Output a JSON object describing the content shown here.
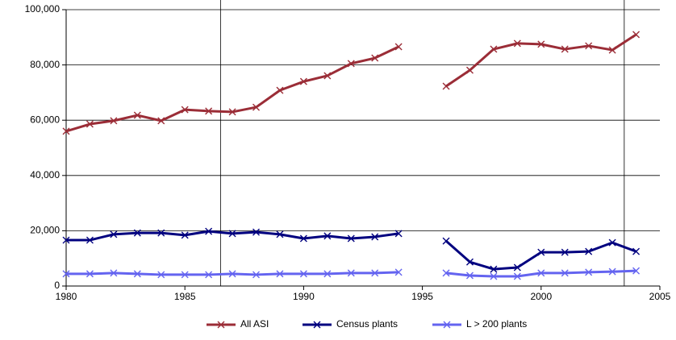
{
  "chart_data": {
    "type": "line",
    "x": [
      1980,
      1981,
      1982,
      1983,
      1984,
      1985,
      1986,
      1987,
      1988,
      1989,
      1990,
      1991,
      1992,
      1993,
      1994,
      1995,
      1996,
      1997,
      1998,
      1999,
      2000,
      2001,
      2002,
      2003,
      2004
    ],
    "series": [
      {
        "name": "All ASI",
        "color": "#9b2d37",
        "values": [
          56000,
          58600,
          59800,
          61800,
          59800,
          63800,
          63300,
          63000,
          64700,
          70800,
          74000,
          76100,
          80500,
          82500,
          86600,
          null,
          72300,
          78100,
          85700,
          87800,
          87500,
          85700,
          86900,
          85400,
          91000
        ]
      },
      {
        "name": "Census plants",
        "color": "#00007f",
        "values": [
          16600,
          16600,
          18700,
          19200,
          19200,
          18400,
          19800,
          19000,
          19500,
          18700,
          17200,
          18100,
          17200,
          17800,
          19000,
          null,
          16300,
          8700,
          6100,
          6700,
          12200,
          12200,
          12500,
          15700,
          12500
        ]
      },
      {
        "name": "L > 200 plants",
        "color": "#6464f0",
        "values": [
          4400,
          4400,
          4700,
          4400,
          4100,
          4100,
          4100,
          4400,
          4100,
          4400,
          4400,
          4400,
          4700,
          4700,
          5000,
          null,
          4700,
          3800,
          3500,
          3500,
          4700,
          4700,
          5000,
          5200,
          5500
        ]
      }
    ],
    "xlim": [
      1980,
      2005
    ],
    "xticks": [
      1980,
      1985,
      1990,
      1995,
      2000,
      2005
    ],
    "ylim": [
      0,
      100000
    ],
    "yticks": [
      0,
      {
        "value": 20000,
        "label": "20,000"
      },
      {
        "value": 40000,
        "label": "40,000"
      },
      {
        "value": 60000,
        "label": "60,000"
      },
      {
        "value": 80000,
        "label": "80,000"
      },
      {
        "value": 100000,
        "label": "100,000"
      }
    ],
    "grid": true,
    "vlines": [
      1986.5,
      2003.5
    ],
    "legend": "bottom"
  }
}
